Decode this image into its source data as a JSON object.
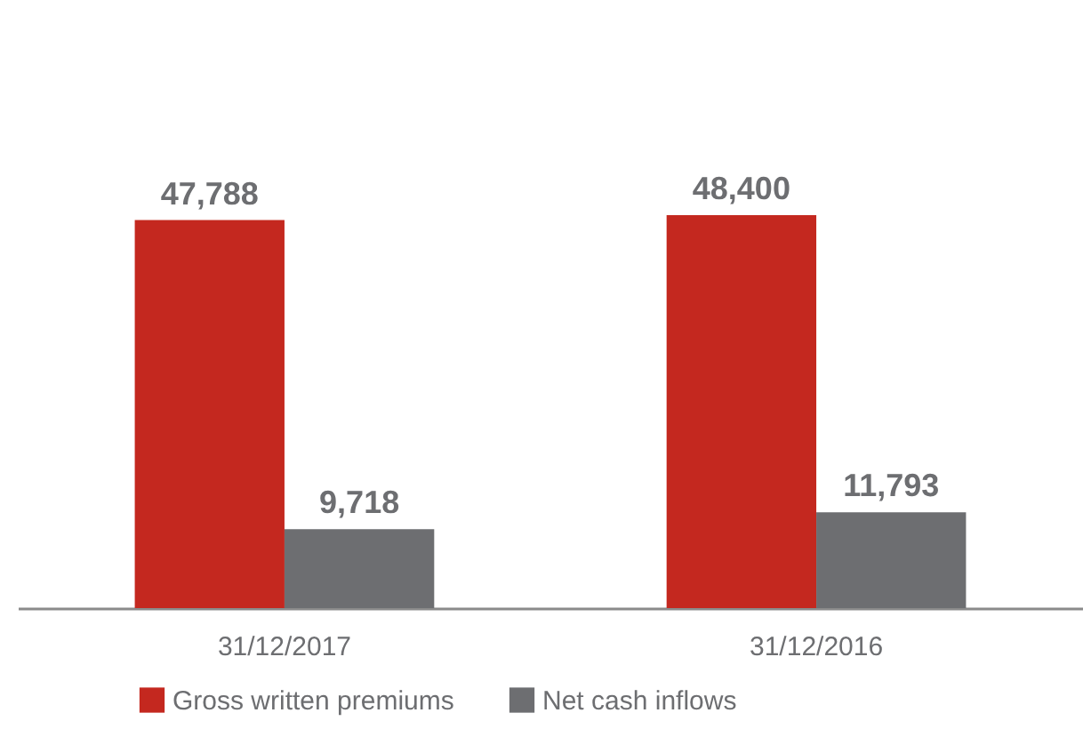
{
  "chart_data": {
    "type": "bar",
    "categories": [
      "31/12/2017",
      "31/12/2016"
    ],
    "series": [
      {
        "name": "Gross written premiums",
        "color": "#c4281f",
        "values": [
          47788,
          48400
        ],
        "value_labels": [
          "47,788",
          "48,400"
        ]
      },
      {
        "name": "Net cash inflows",
        "color": "#6d6e71",
        "values": [
          9718,
          11793
        ],
        "value_labels": [
          "9,718",
          "11,793"
        ]
      }
    ],
    "legend": "bottom"
  }
}
